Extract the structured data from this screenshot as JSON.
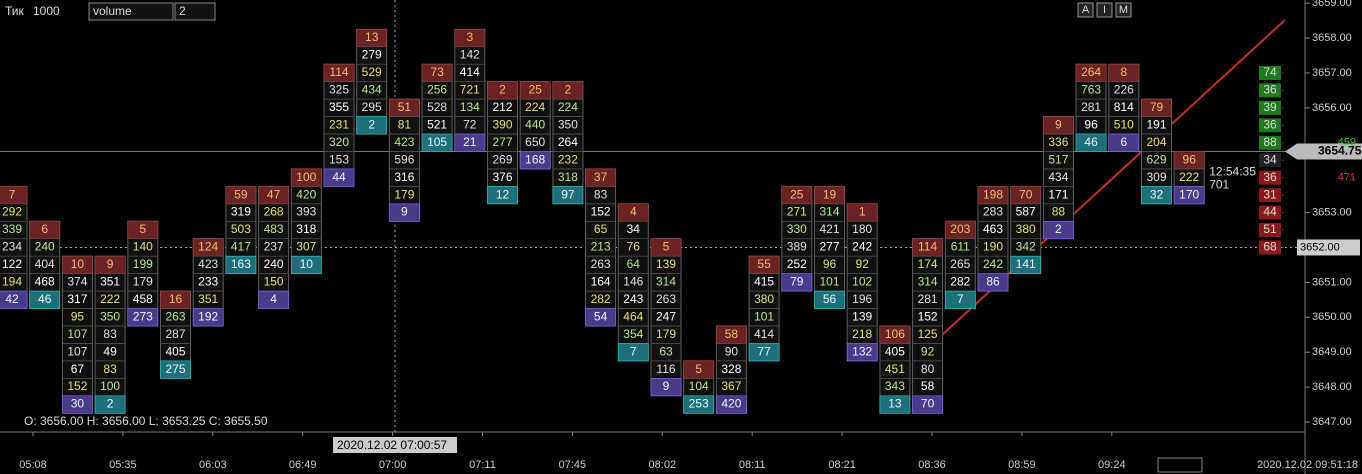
{
  "toolbar": {
    "mode": "Тик",
    "size": "1000",
    "indicator": "volume",
    "depth": "2",
    "buttons": [
      "A",
      "I",
      "M"
    ]
  },
  "ohlc": "O: 3656.00  H: 3656.00  L: 3653.25  C: 3655.50",
  "cursor_time": "2020.12.02 07:00:57",
  "current_time": "2020.12.02 09:51:18",
  "chart_data": {
    "type": "footprint",
    "tick_size": 0.5,
    "ylim": [
      3646.77,
      3659.09
    ],
    "yticks": [
      {
        "value": 3647,
        "label": "3647.00"
      },
      {
        "value": 3648,
        "label": "3648.00"
      },
      {
        "value": 3649,
        "label": "3649.00"
      },
      {
        "value": 3650,
        "label": "3650.00"
      },
      {
        "value": 3651,
        "label": "3651.00"
      },
      {
        "value": 3653,
        "label": "3653.00"
      },
      {
        "value": 3656,
        "label": "3656.00"
      },
      {
        "value": 3657,
        "label": "3657.00"
      },
      {
        "value": 3658,
        "label": "3658.00"
      },
      {
        "value": 3659,
        "label": "3659.00"
      }
    ],
    "last_price": {
      "value": 3654.75,
      "label": "3654.75"
    },
    "cursor_price": {
      "value": 3652,
      "label": "3652.00"
    },
    "time_labels": [
      "05:08",
      "05:35",
      "06:03",
      "06:49",
      "07:00",
      "07:11",
      "07:45",
      "08:02",
      "08:11",
      "08:21",
      "08:36",
      "08:59",
      "09:24"
    ],
    "bar_timer": "12:54:35",
    "bar_volume": "701",
    "columns": [
      {
        "high": 3653.5,
        "values": [
          7,
          292,
          339,
          234,
          122,
          194,
          42
        ]
      },
      {
        "high": 3652.5,
        "values": [
          6,
          240,
          404,
          468,
          46
        ]
      },
      {
        "high": 3651.5,
        "values": [
          10,
          374,
          317,
          95,
          107,
          107,
          67,
          152,
          30
        ]
      },
      {
        "high": 3651.5,
        "values": [
          9,
          351,
          222,
          350,
          83,
          49,
          83,
          100,
          2
        ]
      },
      {
        "high": 3652.5,
        "values": [
          5,
          140,
          199,
          179,
          458,
          273
        ]
      },
      {
        "high": 3650.5,
        "values": [
          16,
          263,
          287,
          405,
          275
        ]
      },
      {
        "high": 3652,
        "values": [
          124,
          423,
          233,
          351,
          192
        ]
      },
      {
        "high": 3653.5,
        "values": [
          59,
          319,
          503,
          417,
          163
        ]
      },
      {
        "high": 3653.5,
        "values": [
          47,
          268,
          483,
          237,
          240,
          150,
          4
        ]
      },
      {
        "high": 3654,
        "values": [
          100,
          420,
          393,
          318,
          307,
          10
        ]
      },
      {
        "high": 3657,
        "values": [
          114,
          325,
          355,
          231,
          320,
          153,
          44
        ]
      },
      {
        "high": 3658,
        "values": [
          13,
          279,
          529,
          434,
          295,
          2
        ]
      },
      {
        "high": 3656,
        "values": [
          51,
          81,
          423,
          596,
          316,
          179,
          9
        ]
      },
      {
        "high": 3657,
        "values": [
          73,
          256,
          528,
          521,
          105
        ]
      },
      {
        "high": 3658,
        "values": [
          3,
          142,
          414,
          721,
          134,
          72,
          21
        ]
      },
      {
        "high": 3656.5,
        "values": [
          2,
          212,
          390,
          277,
          269,
          376,
          12
        ]
      },
      {
        "high": 3656.5,
        "values": [
          25,
          224,
          440,
          650,
          168
        ]
      },
      {
        "high": 3656.5,
        "values": [
          2,
          224,
          350,
          264,
          232,
          318,
          97
        ]
      },
      {
        "high": 3654,
        "values": [
          37,
          83,
          152,
          65,
          213,
          263,
          164,
          282,
          54
        ]
      },
      {
        "high": 3653,
        "values": [
          4,
          34,
          76,
          64,
          146,
          243,
          464,
          354,
          7
        ]
      },
      {
        "high": 3652,
        "values": [
          5,
          139,
          314,
          263,
          247,
          179,
          63,
          116,
          9
        ]
      },
      {
        "high": 3648.5,
        "values": [
          5,
          104,
          253
        ]
      },
      {
        "high": 3649.5,
        "values": [
          58,
          90,
          328,
          367,
          420
        ]
      },
      {
        "high": 3651.5,
        "values": [
          55,
          415,
          380,
          101,
          414,
          77
        ]
      },
      {
        "high": 3653.5,
        "values": [
          25,
          271,
          330,
          389,
          252,
          79
        ]
      },
      {
        "high": 3653.5,
        "values": [
          19,
          314,
          421,
          277,
          96,
          101,
          56
        ]
      },
      {
        "high": 3653,
        "values": [
          1,
          180,
          242,
          92,
          102,
          196,
          139,
          218,
          132
        ]
      },
      {
        "high": 3649.5,
        "values": [
          106,
          405,
          451,
          343,
          13
        ]
      },
      {
        "high": 3652,
        "values": [
          114,
          174,
          314,
          281,
          152,
          125,
          92,
          80,
          58,
          70
        ]
      },
      {
        "high": 3652.5,
        "values": [
          203,
          611,
          265,
          282,
          7
        ]
      },
      {
        "high": 3653.5,
        "values": [
          198,
          283,
          463,
          190,
          242,
          86
        ]
      },
      {
        "high": 3653.5,
        "values": [
          70,
          587,
          380,
          342,
          141
        ]
      },
      {
        "high": 3655.5,
        "values": [
          9,
          336,
          517,
          434,
          171,
          88,
          2
        ]
      },
      {
        "high": 3657,
        "values": [
          264,
          763,
          281,
          96,
          46
        ]
      },
      {
        "high": 3657,
        "values": [
          8,
          226,
          814,
          510,
          6
        ]
      },
      {
        "high": 3656,
        "values": [
          79,
          191,
          204,
          629,
          309,
          32
        ]
      },
      {
        "high": 3654.5,
        "values": [
          96,
          222,
          170
        ]
      }
    ],
    "side_values": [
      {
        "price": 3657,
        "value": 74
      },
      {
        "price": 3656.5,
        "value": 36
      },
      {
        "price": 3656,
        "value": 39
      },
      {
        "price": 3655.5,
        "value": 36
      },
      {
        "price": 3655,
        "value": 88
      },
      {
        "price": 3654.5,
        "value": 34
      },
      {
        "price": 3654,
        "value": 36
      },
      {
        "price": 3653.5,
        "value": 31
      },
      {
        "price": 3653,
        "value": 44
      },
      {
        "price": 3652.5,
        "value": 51
      },
      {
        "price": 3652,
        "value": 68
      }
    ],
    "side_totals": [
      {
        "price": 3655,
        "value": 459
      },
      {
        "price": 3654,
        "value": 471
      }
    ]
  }
}
